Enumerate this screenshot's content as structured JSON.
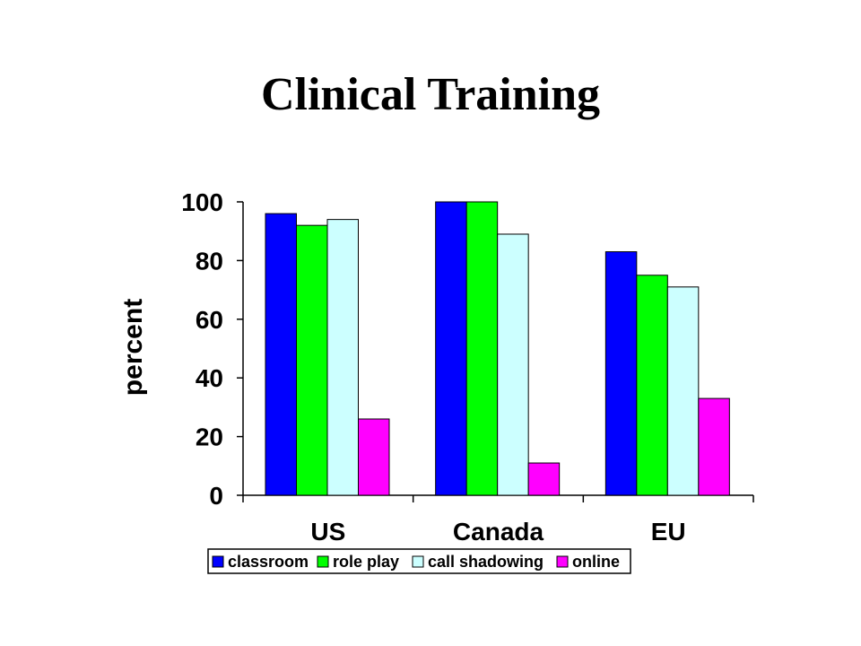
{
  "chart_data": {
    "type": "bar",
    "title": "Clinical Training",
    "xlabel": "",
    "ylabel": "percent",
    "categories": [
      "US",
      "Canada",
      "EU"
    ],
    "series": [
      {
        "name": "classroom",
        "color": "#0000FF",
        "values": [
          96,
          100,
          83
        ]
      },
      {
        "name": "role play",
        "color": "#00FF00",
        "values": [
          92,
          100,
          75
        ]
      },
      {
        "name": "call shadowing",
        "color": "#CCFFFF",
        "values": [
          94,
          89,
          71
        ]
      },
      {
        "name": "online",
        "color": "#FF00FF",
        "values": [
          26,
          11,
          33
        ]
      }
    ],
    "ylim": [
      0,
      100
    ],
    "yticks": [
      "0",
      "20",
      "40",
      "60",
      "80",
      "100"
    ],
    "grid": false,
    "legend_position": "bottom"
  }
}
